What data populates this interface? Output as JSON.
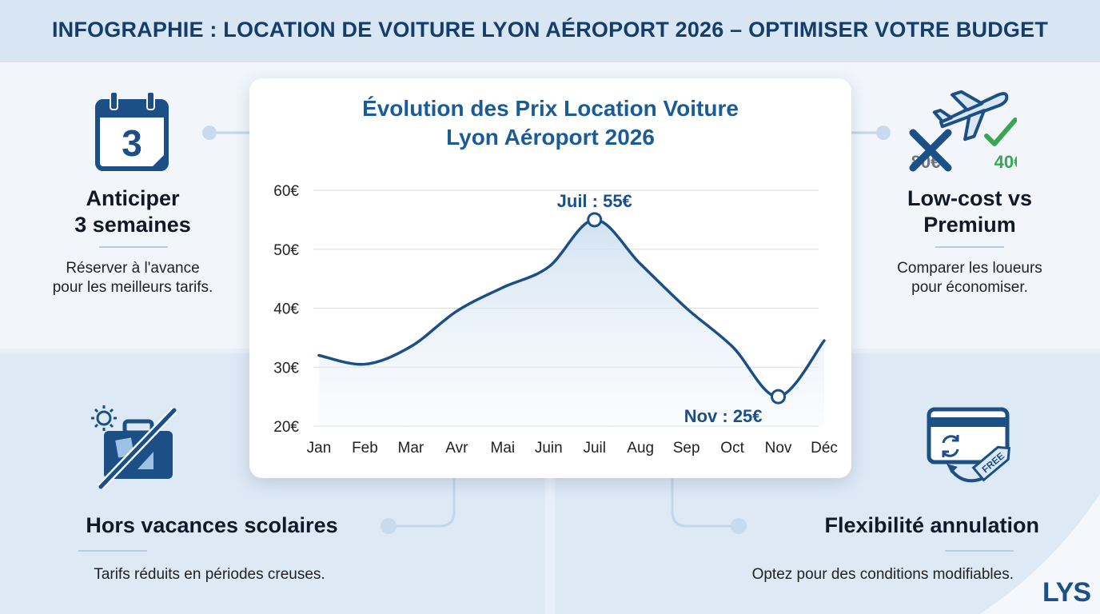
{
  "page": {
    "title": "INFOGRAPHIE : LOCATION DE VOITURE LYON AÉROPORT 2026 – OPTIMISER VOTRE BUDGET",
    "logo": "LYS"
  },
  "cards": {
    "anticipate": {
      "icon": "calendar-icon",
      "icon_text": "3",
      "title_line1": "Anticiper",
      "title_line2": "3 semaines",
      "desc_line1": "Réserver à l'avance",
      "desc_line2": "pour les meilleurs tarifs."
    },
    "lowcost": {
      "icon": "plane-icon",
      "old_price": "80€",
      "new_price": "40€",
      "title_line1": "Low-cost vs",
      "title_line2": "Premium",
      "desc_line1": "Comparer les loueurs",
      "desc_line2": "pour économiser."
    },
    "offseason": {
      "icon": "suitcase-icon",
      "title": "Hors vacances scolaires",
      "desc": "Tarifs réduits en périodes creuses."
    },
    "flexibility": {
      "icon": "card-refund-icon",
      "tag_text": "FREE",
      "title": "Flexibilité annulation",
      "desc": "Optez pour des conditions modifiables."
    }
  },
  "colors": {
    "accent": "#1b4f86",
    "line": "#1b4f86",
    "green": "#3aa655",
    "title_blue": "#1c5c96"
  },
  "chart_data": {
    "type": "line",
    "title_line1": "Évolution des Prix Location Voiture",
    "title_line2": "Lyon Aéroport 2026",
    "categories": [
      "Jan",
      "Feb",
      "Mar",
      "Avr",
      "Mai",
      "Juin",
      "Juil",
      "Aug",
      "Sep",
      "Oct",
      "Nov",
      "Déc"
    ],
    "series": [
      {
        "values": [
          32,
          30.5,
          33.5,
          39.5,
          43.5,
          47,
          55,
          47.5,
          40,
          33.5,
          25,
          34.5
        ]
      }
    ],
    "ylim": [
      20,
      60
    ],
    "yticks": [
      "20€",
      "30€",
      "40€",
      "50€",
      "60€"
    ],
    "ytick_values": [
      20,
      30,
      40,
      50,
      60
    ],
    "grid": true,
    "annotations": [
      {
        "text": "Juil : 55€",
        "category_index": 6,
        "value": 55,
        "placement": "above"
      },
      {
        "text": "Nov : 25€",
        "category_index": 10,
        "value": 25,
        "placement": "below-left"
      }
    ]
  }
}
